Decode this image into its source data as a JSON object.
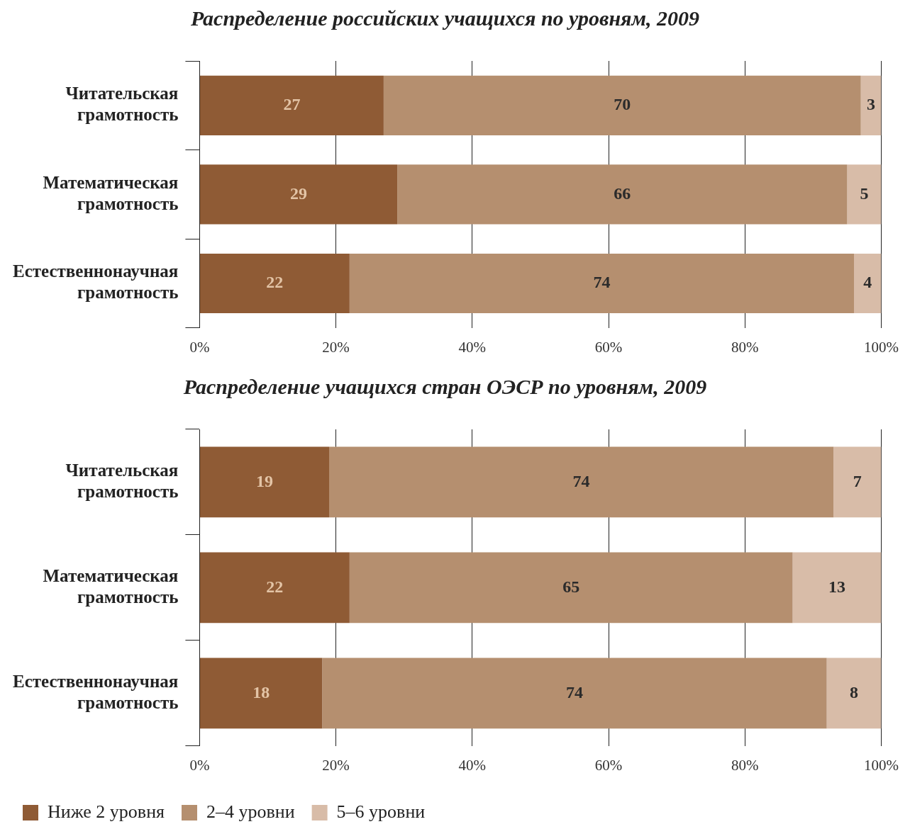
{
  "chart_data": [
    {
      "type": "bar",
      "orientation": "horizontal",
      "stacked": true,
      "title": "Распределение российских учащихся по уровням, 2009",
      "categories": [
        "Читательская грамотность",
        "Математическая грамотность",
        "Естественнонаучная грамотность"
      ],
      "series": [
        {
          "color": "#8f5b35",
          "values": [
            27,
            29,
            22
          ]
        },
        {
          "color": "#b58f6f",
          "values": [
            70,
            66,
            74
          ]
        },
        {
          "color": "#d8bca8",
          "values": [
            3,
            5,
            4
          ]
        }
      ],
      "xlim": [
        0,
        100
      ],
      "xticks": [
        {
          "value": 0,
          "label": "0%"
        },
        {
          "value": 20,
          "label": "20%"
        },
        {
          "value": 40,
          "label": "40%"
        },
        {
          "value": 60,
          "label": "60%"
        },
        {
          "value": 80,
          "label": "80%"
        },
        {
          "value": 100,
          "label": "100%"
        }
      ],
      "grid": "x",
      "data_labels": true,
      "legend": false
    },
    {
      "type": "bar",
      "orientation": "horizontal",
      "stacked": true,
      "title": "Распределение учащихся стран ОЭСР по уровням, 2009",
      "categories": [
        "Читательская грамотность",
        "Математическая грамотность",
        "Естественнонаучная грамотность"
      ],
      "series": [
        {
          "name": "Ниже 2 уровня",
          "color": "#8f5b35",
          "values": [
            19,
            22,
            18
          ]
        },
        {
          "name": "2–4 уровни",
          "color": "#b58f6f",
          "values": [
            74,
            65,
            74
          ]
        },
        {
          "name": "5–6 уровни",
          "color": "#d8bca8",
          "values": [
            7,
            13,
            8
          ]
        }
      ],
      "xlim": [
        0,
        100
      ],
      "xticks": [
        {
          "value": 0,
          "label": "0%"
        },
        {
          "value": 20,
          "label": "20%"
        },
        {
          "value": 40,
          "label": "40%"
        },
        {
          "value": 60,
          "label": "60%"
        },
        {
          "value": 80,
          "label": "80%"
        },
        {
          "value": 100,
          "label": "100%"
        }
      ],
      "grid": "x",
      "data_labels": true,
      "legend": "bottom left"
    }
  ]
}
